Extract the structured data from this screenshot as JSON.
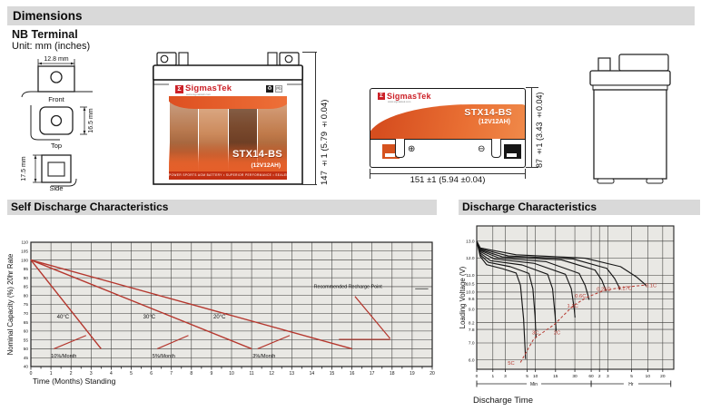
{
  "sections": {
    "dimensions": {
      "title": "Dimensions"
    },
    "self_discharge": {
      "title": "Self Discharge Characteristics"
    },
    "discharge": {
      "title": "Discharge Characteristics"
    }
  },
  "terminal": {
    "heading": "NB Terminal",
    "unit_note": "Unit: mm (inches)",
    "front": {
      "label": "Front",
      "width_dim": "12.8 mm"
    },
    "top": {
      "label": "Top",
      "height_dim": "16.5 mm"
    },
    "side": {
      "label": "Side",
      "height_dim": "17.5 mm"
    }
  },
  "battery": {
    "brand": "SigmasTek",
    "brand_sigma": "Σ",
    "brand_url": "www.sigmastek.com",
    "model": "STX14-BS",
    "spec": "(12V12AH)",
    "icons": {
      "recycle": "♻",
      "pb": "Pb"
    },
    "fineprint": "POWER SPORTS AGM BATTERY  •  SUPERIOR PERFORMANCE  •  SEALED NON-SPILLABLE  •  MAINTENANCE FREE",
    "front_height_dim": "147 ±1 (5.79 ±0.04)",
    "top_width_dim": "151 ±1 (5.94 ±0.04)",
    "top_height_dim": "87 ±1 (3.43 ±0.04)",
    "plus_symbol": "⊕",
    "minus_symbol": "⊖"
  },
  "chart_data": [
    {
      "type": "line",
      "title": "Self Discharge Characteristics",
      "xlabel": "Time (Months) Standing",
      "ylabel": "Nominal Capacity (%) 20hr Rate",
      "xlim": [
        0,
        20
      ],
      "ylim": [
        40,
        110
      ],
      "x_ticks": [
        0,
        1,
        2,
        3,
        4,
        5,
        6,
        7,
        8,
        9,
        10,
        11,
        12,
        13,
        14,
        15,
        16,
        17,
        18,
        19,
        20
      ],
      "y_ticks": [
        40,
        45,
        50,
        55,
        60,
        65,
        70,
        75,
        80,
        85,
        90,
        95,
        100,
        105,
        110
      ],
      "grid": "on",
      "line_color": "#b5372e",
      "series": [
        {
          "name": "40°C",
          "points": [
            [
              0,
              100
            ],
            [
              3.5,
              50
            ]
          ],
          "label_x": 1.6,
          "label_y": 67
        },
        {
          "name": "30°C",
          "points": [
            [
              0,
              100
            ],
            [
              11,
              50
            ]
          ],
          "label_x": 5.9,
          "label_y": 67
        },
        {
          "name": "20°C",
          "points": [
            [
              0,
              100
            ],
            [
              16,
              50
            ]
          ],
          "label_x": 9.4,
          "label_y": 67
        }
      ],
      "rate_markers": [
        {
          "label": "10%/Month",
          "lx": 1.0,
          "ly": 45.2,
          "line": [
            [
              1.15,
              50
            ],
            [
              2.75,
              57.5
            ]
          ]
        },
        {
          "label": "5%/Month",
          "lx": 6.05,
          "ly": 45.2,
          "line": [
            [
              6.3,
              50
            ],
            [
              7.85,
              57.5
            ]
          ]
        },
        {
          "label": "3%/Month",
          "lx": 11.05,
          "ly": 45.2,
          "line": [
            [
              11.3,
              50
            ],
            [
              12.9,
              57.5
            ]
          ]
        }
      ],
      "recharge": {
        "label": "Recommended Recharge Point",
        "lx": 15.8,
        "ly": 84.2,
        "diag": [
          [
            16.15,
            79.5
          ],
          [
            17.9,
            55.8
          ]
        ],
        "horiz": [
          [
            15.35,
            55.3
          ],
          [
            17.9,
            55.3
          ]
        ],
        "tick": [
          [
            19.15,
            83.8
          ],
          [
            19.8,
            83.8
          ]
        ]
      }
    },
    {
      "type": "line",
      "title": "Discharge Characteristics",
      "xlabel": "Discharge Time",
      "ylabel": "Loading Voltage (V)",
      "ylim": [
        5.45,
        13.9
      ],
      "y_ticks": [
        "13.0",
        "12.0",
        "11.0",
        "10.5",
        "10.0",
        "9.6",
        "9.0",
        "8.2",
        "7.8",
        "7.0",
        "6.0"
      ],
      "x_ticks": [
        {
          "t": "0",
          "p": 0
        },
        {
          "t": "1",
          "p": 0.082
        },
        {
          "t": "3",
          "p": 0.145
        },
        {
          "t": "5",
          "p": 0.256
        },
        {
          "t": "10",
          "p": 0.298
        },
        {
          "t": "15",
          "p": 0.4
        },
        {
          "t": "30",
          "p": 0.498
        },
        {
          "t": "60",
          "p": 0.581
        },
        {
          "t": "2",
          "p": 0.623
        },
        {
          "t": "3",
          "p": 0.665
        },
        {
          "t": "5",
          "p": 0.786
        },
        {
          "t": "10",
          "p": 0.868
        },
        {
          "t": "20",
          "p": 0.944
        }
      ],
      "x_units": [
        {
          "label": "Min",
          "from": 0,
          "to": 0.581
        },
        {
          "label": "Hr",
          "from": 0.581,
          "to": 0.985
        }
      ],
      "grid": "on",
      "curve_color": "#161616",
      "line_color": "#b5372e",
      "series": [
        {
          "name": "5C",
          "label_x": 0.175,
          "label_y": 5.72,
          "points": [
            [
              0,
              13
            ],
            [
              0.018,
              12.1
            ],
            [
              0.05,
              11.62
            ],
            [
              0.13,
              11.38
            ],
            [
              0.2,
              11.12
            ],
            [
              0.222,
              10.4
            ],
            [
              0.238,
              8.4
            ],
            [
              0.248,
              6.05
            ]
          ]
        },
        {
          "name": "3C",
          "label_x": 0.298,
          "label_y": 7.5,
          "points": [
            [
              0,
              13
            ],
            [
              0.018,
              12.2
            ],
            [
              0.06,
              11.75
            ],
            [
              0.17,
              11.5
            ],
            [
              0.265,
              11.1
            ],
            [
              0.285,
              10.2
            ],
            [
              0.296,
              8.6
            ],
            [
              0.301,
              7.3
            ]
          ]
        },
        {
          "name": "2C",
          "label_x": 0.408,
          "label_y": 7.5,
          "points": [
            [
              0,
              13
            ],
            [
              0.018,
              12.3
            ],
            [
              0.07,
              11.85
            ],
            [
              0.23,
              11.6
            ],
            [
              0.36,
              11.05
            ],
            [
              0.385,
              10.2
            ],
            [
              0.398,
              8.6
            ],
            [
              0.403,
              7.7
            ]
          ]
        },
        {
          "name": "1.1C",
          "label_x": 0.487,
          "label_y": 9.1,
          "points": [
            [
              0,
              13
            ],
            [
              0.018,
              12.38
            ],
            [
              0.09,
              11.95
            ],
            [
              0.29,
              11.7
            ],
            [
              0.45,
              11.05
            ],
            [
              0.48,
              10.2
            ],
            [
              0.495,
              9.0
            ],
            [
              0.499,
              8.5
            ]
          ]
        },
        {
          "name": "0.6C",
          "label_x": 0.527,
          "label_y": 9.68,
          "points": [
            [
              0,
              13
            ],
            [
              0.018,
              12.45
            ],
            [
              0.11,
              12.02
            ],
            [
              0.35,
              11.8
            ],
            [
              0.52,
              11.1
            ],
            [
              0.55,
              10.4
            ],
            [
              0.565,
              9.8
            ],
            [
              0.57,
              9.55
            ]
          ]
        },
        {
          "name": "0.25C",
          "label_x": 0.645,
          "label_y": 10.08,
          "points": [
            [
              0,
              13
            ],
            [
              0.018,
              12.5
            ],
            [
              0.13,
              12.08
            ],
            [
              0.43,
              11.9
            ],
            [
              0.6,
              11.3
            ],
            [
              0.635,
              10.7
            ],
            [
              0.652,
              10.2
            ],
            [
              0.657,
              10.05
            ]
          ]
        },
        {
          "name": "0.17C",
          "label_x": 0.752,
          "label_y": 10.12,
          "points": [
            [
              0,
              13
            ],
            [
              0.018,
              12.55
            ],
            [
              0.16,
              12.13
            ],
            [
              0.49,
              11.95
            ],
            [
              0.66,
              11.4
            ],
            [
              0.7,
              10.8
            ],
            [
              0.72,
              10.35
            ],
            [
              0.727,
              10.15
            ]
          ]
        },
        {
          "name": "0.1C",
          "label_x": 0.885,
          "label_y": 10.3,
          "points": [
            [
              0,
              13
            ],
            [
              0.018,
              12.6
            ],
            [
              0.2,
              12.2
            ],
            [
              0.55,
              12.0
            ],
            [
              0.73,
              11.5
            ],
            [
              0.81,
              10.9
            ],
            [
              0.85,
              10.5
            ],
            [
              0.862,
              10.35
            ]
          ]
        }
      ],
      "dashed_connector": [
        [
          0.222,
          5.85
        ],
        [
          0.29,
          7.25
        ],
        [
          0.395,
          8.1
        ],
        [
          0.49,
          9.2
        ],
        [
          0.56,
          9.7
        ],
        [
          0.648,
          10.1
        ],
        [
          0.725,
          10.25
        ],
        [
          0.858,
          10.42
        ]
      ]
    }
  ]
}
